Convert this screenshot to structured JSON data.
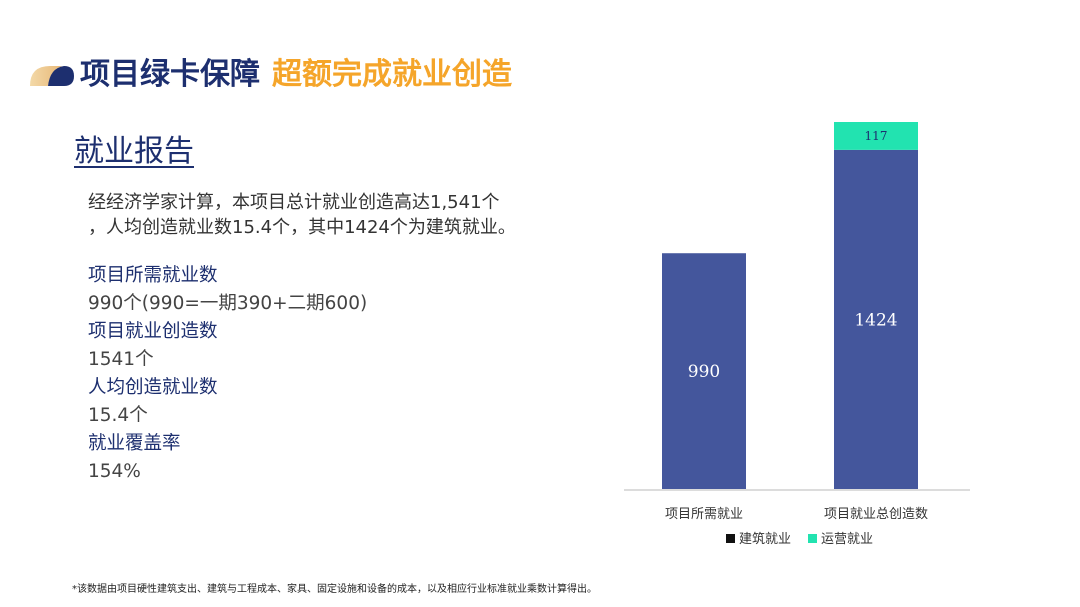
{
  "header": {
    "title_main": "项目绿卡保障",
    "title_highlight": "超额完成就业创造"
  },
  "section": {
    "title": "就业报告",
    "summary_line1": "经经济学家计算，本项目总计就业创造高达1,541个",
    "summary_line2": "，人均创造就业数15.4个，其中1424个为建筑就业。"
  },
  "stats": [
    {
      "label": "项目所需就业数",
      "value": "990个(990=一期390+二期600)"
    },
    {
      "label": "项目就业创造数",
      "value": "1541个"
    },
    {
      "label": "人均创造就业数",
      "value": "15.4个"
    },
    {
      "label": "就业覆盖率",
      "value": "154%"
    }
  ],
  "footnote": "*该数据由项目硬性建筑支出、建筑与工程成本、家具、固定设施和设备的成本，以及相应行业标准就业乘数计算得出。",
  "colors": {
    "navy": "#1d2f6f",
    "orange": "#f5a52a",
    "bar_construction": "#44569c",
    "bar_operation": "#22e3b0"
  },
  "chart_data": {
    "type": "bar",
    "stacked": true,
    "categories": [
      "项目所需就业",
      "项目就业总创造数"
    ],
    "series": [
      {
        "name": "建筑就业",
        "values": [
          990,
          1424
        ],
        "color": "#44569c",
        "legend_color": "#111111"
      },
      {
        "name": "运营就业",
        "values": [
          0,
          117
        ],
        "color": "#22e3b0",
        "legend_color": "#22e3b0"
      }
    ],
    "data_labels": [
      [
        "990",
        "1424"
      ],
      [
        "",
        "117"
      ]
    ],
    "ylim": [
      0,
      1541
    ],
    "grid": false,
    "legend": "bottom"
  }
}
